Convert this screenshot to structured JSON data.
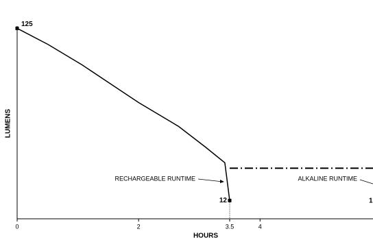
{
  "chart_data": {
    "type": "line",
    "x_label": "HOURS",
    "y_label": "LUMENS",
    "xlim": [
      0,
      5.86
    ],
    "xticks": [
      0,
      2,
      3.5,
      4
    ],
    "ylim": [
      0,
      126.5
    ],
    "series": [
      {
        "name": "RECHARGEABLE RUNTIME",
        "color": "#000000",
        "style": "solid",
        "x": [
          0,
          0.51,
          1.07,
          2,
          2.66,
          3.1,
          3.42,
          3.5
        ],
        "values": [
          125,
          114.4,
          101,
          76.3,
          60.6,
          47.1,
          36.8,
          12
        ]
      },
      {
        "name": "ALKALINE RUNTIME",
        "color": "#000000",
        "style": "dashdot",
        "x": [
          3.5,
          5.86
        ],
        "values": [
          33.2,
          33.2
        ]
      }
    ],
    "annotations": [
      "1"
    ]
  }
}
